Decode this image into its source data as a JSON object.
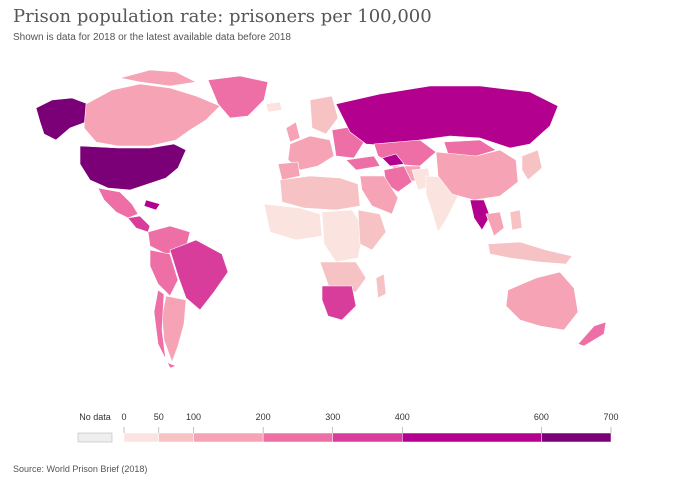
{
  "title": "Prison population rate: prisoners per 100,000",
  "subtitle": "Shown is data for 2018 or the latest available data before 2018",
  "source": "Source: World Prison Brief (2018)",
  "legend": {
    "no_data_label": "No data",
    "no_data_color": "#eeeeee",
    "bins": [
      {
        "from": 0,
        "to": 50,
        "color": "#fbe4df"
      },
      {
        "from": 50,
        "to": 100,
        "color": "#f7c2c3"
      },
      {
        "from": 100,
        "to": 200,
        "color": "#f5a3b5"
      },
      {
        "from": 200,
        "to": 300,
        "color": "#ee6fa6"
      },
      {
        "from": 300,
        "to": 400,
        "color": "#d83d9c"
      },
      {
        "from": 400,
        "to": 600,
        "color": "#b4008e"
      },
      {
        "from": 600,
        "to": 700,
        "color": "#7b0077"
      }
    ],
    "ticks": [
      "0",
      "50",
      "100",
      "200",
      "300",
      "400",
      "600",
      "700"
    ]
  }
}
